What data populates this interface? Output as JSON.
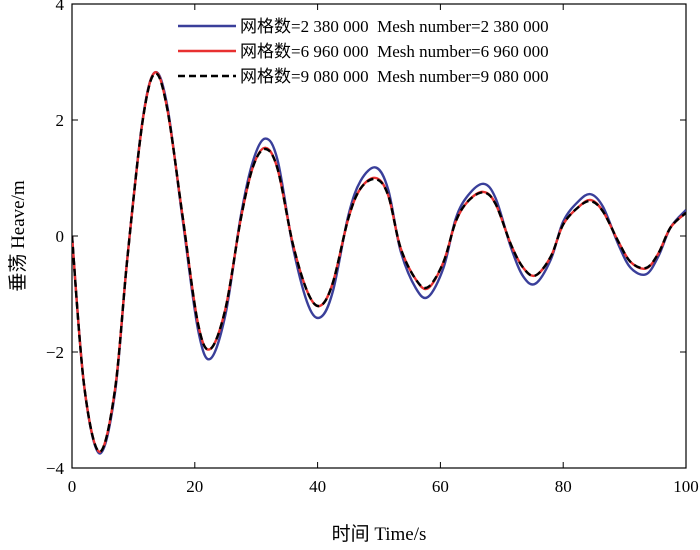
{
  "chart_data": {
    "type": "line",
    "title": "",
    "xlabel": "时间 Time/s",
    "ylabel": "垂荡 Heave/m",
    "xlim": [
      0,
      100
    ],
    "ylim": [
      -4,
      4
    ],
    "xticks": [
      0,
      20,
      40,
      60,
      80,
      100
    ],
    "yticks": [
      -4,
      -2,
      0,
      2,
      4
    ],
    "grid": false,
    "legend_position": "top-right",
    "x": [
      0,
      2,
      4.5,
      7,
      9,
      11.5,
      13.5,
      15.5,
      18,
      20.5,
      22.5,
      25,
      27.5,
      29.5,
      31.5,
      33.5,
      36,
      38.5,
      40.5,
      42.5,
      45,
      47,
      49.5,
      51.5,
      53.5,
      56,
      58,
      60.5,
      62.5,
      64.5,
      67,
      69,
      71.5,
      73.5,
      75.5,
      78,
      80,
      82.5,
      84.5,
      86.5,
      89,
      91,
      93.5,
      95.5,
      97.5,
      100
    ],
    "series": [
      {
        "name": "网格数=2 380 000  Mesh number=2 380 000",
        "color": "#3a3f9a",
        "dash": "solid",
        "values": [
          0,
          -2.6,
          -3.75,
          -2.7,
          -0.4,
          2.0,
          2.82,
          2.25,
          0.3,
          -1.6,
          -2.12,
          -1.35,
          0.35,
          1.3,
          1.68,
          1.3,
          -0.2,
          -1.2,
          -1.4,
          -0.95,
          0.35,
          0.95,
          1.18,
          0.8,
          -0.25,
          -0.9,
          -1.05,
          -0.55,
          0.3,
          0.7,
          0.9,
          0.65,
          -0.2,
          -0.7,
          -0.82,
          -0.4,
          0.25,
          0.6,
          0.72,
          0.5,
          -0.15,
          -0.55,
          -0.66,
          -0.35,
          0.15,
          0.45
        ]
      },
      {
        "name": "网格数=6 960 000  Mesh number=6 960 000",
        "color": "#e83030",
        "dash": "solid",
        "values": [
          0,
          -2.6,
          -3.72,
          -2.65,
          -0.4,
          1.98,
          2.82,
          2.2,
          0.35,
          -1.5,
          -1.95,
          -1.25,
          0.3,
          1.2,
          1.52,
          1.15,
          -0.15,
          -1.0,
          -1.2,
          -0.8,
          0.3,
          0.82,
          1.0,
          0.7,
          -0.2,
          -0.75,
          -0.9,
          -0.45,
          0.25,
          0.6,
          0.76,
          0.55,
          -0.15,
          -0.55,
          -0.68,
          -0.35,
          0.2,
          0.5,
          0.62,
          0.42,
          -0.1,
          -0.45,
          -0.56,
          -0.3,
          0.15,
          0.4
        ]
      },
      {
        "name": "网格数=9 080 000  Mesh number=9 080 000",
        "color": "#000000",
        "dash": "dashed",
        "values": [
          0,
          -2.6,
          -3.72,
          -2.65,
          -0.4,
          1.98,
          2.8,
          2.2,
          0.35,
          -1.5,
          -1.95,
          -1.25,
          0.3,
          1.2,
          1.5,
          1.15,
          -0.15,
          -1.0,
          -1.2,
          -0.8,
          0.3,
          0.82,
          0.98,
          0.7,
          -0.2,
          -0.75,
          -0.88,
          -0.45,
          0.25,
          0.6,
          0.75,
          0.55,
          -0.15,
          -0.55,
          -0.68,
          -0.35,
          0.2,
          0.5,
          0.6,
          0.42,
          -0.1,
          -0.45,
          -0.55,
          -0.3,
          0.15,
          0.4
        ]
      }
    ]
  }
}
